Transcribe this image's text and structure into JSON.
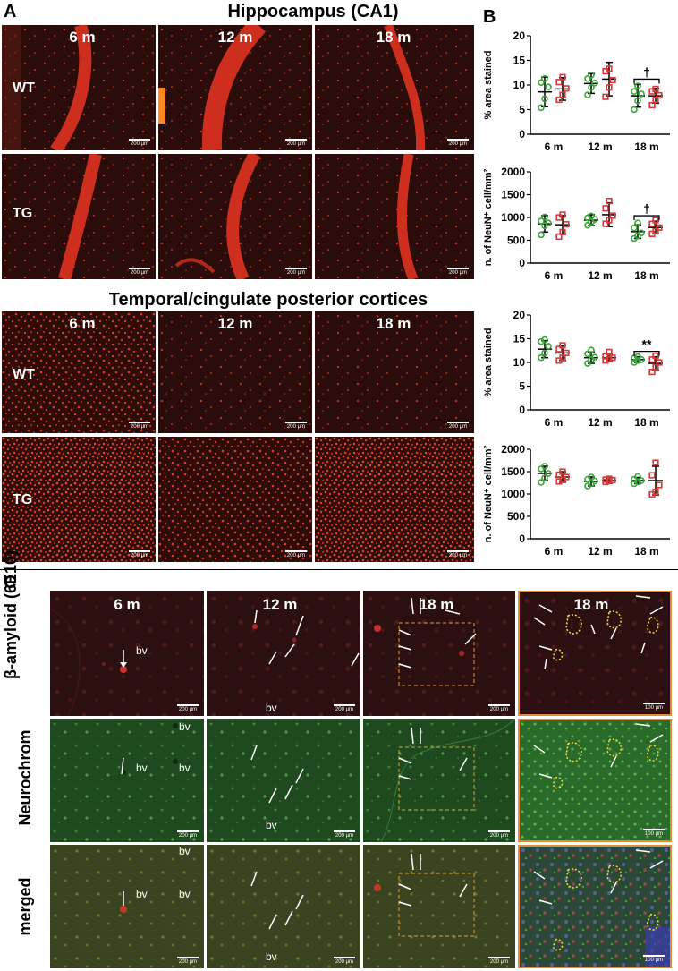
{
  "panelA": {
    "letter": "A",
    "hippo_title": "Hippocampus (CA1)",
    "cortex_title": "Temporal/cingulate posterior cortices",
    "timepoints": [
      "6 m",
      "12 m",
      "18 m"
    ],
    "groups": [
      "WT",
      "TG"
    ],
    "scale_label": "200 µm"
  },
  "panelB": {
    "letter": "B",
    "colors": {
      "wt": "#3aa53a",
      "tg": "#d63a3a",
      "bar": "#000000"
    }
  },
  "panelC": {
    "letter": "C",
    "timepoints": [
      "6 m",
      "12 m",
      "18 m",
      "18 m"
    ],
    "rows": [
      "β-amyloid (6E10)",
      "Neurochrom",
      "merged"
    ],
    "bv": "bv",
    "scale_200": "200 µm",
    "scale_100": "100 µm"
  },
  "chart_data": [
    {
      "type": "scatter",
      "title": "Hippocampus (CA1)",
      "ylabel": "% area stained",
      "categories": [
        "6 m",
        "12 m",
        "18 m"
      ],
      "ylim": [
        0,
        20
      ],
      "yticks": [
        0,
        5,
        10,
        15,
        20
      ],
      "annotation": {
        "text": "†",
        "category": "18 m"
      },
      "series": [
        {
          "group": "WT",
          "mean": [
            8.6,
            10.3,
            7.8
          ],
          "sd": [
            3.0,
            2.0,
            2.3
          ],
          "points": [
            [
              5.4,
              7.2,
              9.6,
              10.5,
              11.3
            ],
            [
              8.0,
              9.5,
              10.4,
              11.3,
              12.0
            ],
            [
              5.0,
              6.8,
              8.2,
              8.7,
              9.8
            ]
          ]
        },
        {
          "group": "TG",
          "mean": [
            9.2,
            11.2,
            7.8
          ],
          "sd": [
            2.3,
            3.4,
            1.5
          ],
          "points": [
            [
              7.0,
              8.0,
              9.3,
              10.6,
              11.6
            ],
            [
              7.6,
              9.5,
              11.0,
              12.8,
              13.3
            ],
            [
              5.9,
              7.0,
              7.9,
              8.7,
              9.2
            ]
          ]
        }
      ]
    },
    {
      "type": "scatter",
      "title": "Hippocampus (CA1)",
      "ylabel": "n. of NeuN⁺ cell/mm²",
      "categories": [
        "6 m",
        "12 m",
        "18 m"
      ],
      "ylim": [
        0,
        2000
      ],
      "yticks": [
        0,
        500,
        1000,
        1500,
        2000
      ],
      "annotation": {
        "text": "†",
        "category": "18 m"
      },
      "series": [
        {
          "group": "WT",
          "mean": [
            860,
            940,
            690
          ],
          "sd": [
            180,
            120,
            150
          ],
          "points": [
            [
              620,
              820,
              880,
              920,
              1010
            ],
            [
              830,
              900,
              960,
              990,
              1030
            ],
            [
              540,
              600,
              660,
              770,
              880
            ]
          ]
        },
        {
          "group": "TG",
          "mean": [
            840,
            1060,
            780
          ],
          "sd": [
            200,
            260,
            140
          ],
          "points": [
            [
              580,
              680,
              850,
              1000,
              1060
            ],
            [
              860,
              940,
              1040,
              1200,
              1360
            ],
            [
              640,
              700,
              780,
              860,
              940
            ]
          ]
        }
      ]
    },
    {
      "type": "scatter",
      "title": "Temporal/cingulate posterior cortices",
      "ylabel": "% area stained",
      "categories": [
        "6 m",
        "12 m",
        "18 m"
      ],
      "ylim": [
        0,
        20
      ],
      "yticks": [
        0,
        5,
        10,
        15,
        20
      ],
      "annotation": {
        "text": "**",
        "category": "18 m"
      },
      "series": [
        {
          "group": "WT",
          "mean": [
            12.8,
            11.0,
            10.6
          ],
          "sd": [
            1.8,
            1.2,
            0.6
          ],
          "points": [
            [
              11.0,
              12.0,
              13.4,
              14.4,
              14.8
            ],
            [
              9.8,
              10.6,
              11.1,
              11.8,
              12.6
            ],
            [
              10.0,
              10.4,
              10.6,
              10.9,
              11.2
            ]
          ]
        },
        {
          "group": "TG",
          "mean": [
            12.0,
            11.0,
            9.8
          ],
          "sd": [
            1.6,
            0.7,
            1.4
          ],
          "points": [
            [
              10.4,
              11.0,
              12.0,
              12.8,
              13.6
            ],
            [
              10.4,
              10.7,
              11.0,
              11.3,
              12.2
            ],
            [
              8.0,
              9.0,
              10.0,
              10.6,
              11.4
            ]
          ]
        }
      ]
    },
    {
      "type": "scatter",
      "title": "Temporal/cingulate posterior cortices",
      "ylabel": "n. of NeuN⁺ cell/mm²",
      "categories": [
        "6 m",
        "12 m",
        "18 m"
      ],
      "ylim": [
        0,
        2000
      ],
      "yticks": [
        0,
        500,
        1000,
        1500,
        2000
      ],
      "series": [
        {
          "group": "WT",
          "mean": [
            1460,
            1280,
            1300
          ],
          "sd": [
            160,
            100,
            70
          ],
          "points": [
            [
              1260,
              1360,
              1460,
              1560,
              1620
            ],
            [
              1180,
              1230,
              1290,
              1330,
              1380
            ],
            [
              1230,
              1270,
              1300,
              1330,
              1390
            ]
          ]
        },
        {
          "group": "TG",
          "mean": [
            1380,
            1300,
            1300
          ],
          "sd": [
            120,
            60,
            320
          ],
          "points": [
            [
              1280,
              1320,
              1380,
              1430,
              1500
            ],
            [
              1270,
              1290,
              1310,
              1320,
              1340
            ],
            [
              990,
              1050,
              1200,
              1420,
              1700
            ]
          ]
        }
      ]
    }
  ]
}
